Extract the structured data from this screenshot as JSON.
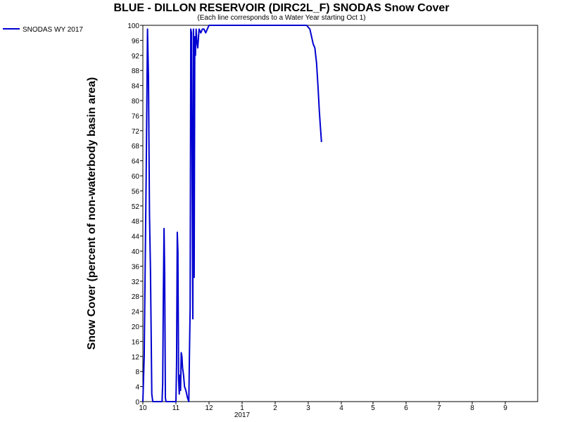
{
  "chart_data": {
    "type": "line",
    "title": "BLUE - DILLON RESERVOIR (DIRC2L_F) SNODAS Snow Cover",
    "subtitle": "(Each line corresponds to a Water Year starting Oct 1)",
    "ylabel": "Snow Cover (percent of non-waterbody basin area)",
    "xlabel": "",
    "ylim": [
      0,
      100
    ],
    "y_ticks": [
      "0",
      "4",
      "8",
      "12",
      "16",
      "20",
      "24",
      "28",
      "32",
      "36",
      "40",
      "44",
      "48",
      "52",
      "56",
      "60",
      "64",
      "68",
      "72",
      "76",
      "80",
      "84",
      "88",
      "92",
      "96",
      "100"
    ],
    "x_ticks": [
      {
        "label": "10",
        "month": 0
      },
      {
        "label": "11",
        "month": 1
      },
      {
        "label": "12",
        "month": 2
      },
      {
        "label": "1",
        "month": 3
      },
      {
        "label": "2",
        "month": 4
      },
      {
        "label": "3",
        "month": 5
      },
      {
        "label": "4",
        "month": 6
      },
      {
        "label": "5",
        "month": 7
      },
      {
        "label": "6",
        "month": 8
      },
      {
        "label": "7",
        "month": 9
      },
      {
        "label": "8",
        "month": 10
      },
      {
        "label": "9",
        "month": 11
      }
    ],
    "year_label": "2017",
    "xlim_months": [
      0,
      12
    ],
    "grid": false,
    "legend_position": "top-left",
    "series": [
      {
        "name": "SNODAS WY 2017",
        "color": "#0000d0",
        "points": [
          [
            0.0,
            0
          ],
          [
            0.04,
            12
          ],
          [
            0.1,
            60
          ],
          [
            0.14,
            99
          ],
          [
            0.17,
            86
          ],
          [
            0.2,
            50
          ],
          [
            0.23,
            35
          ],
          [
            0.25,
            18
          ],
          [
            0.27,
            2
          ],
          [
            0.3,
            0
          ],
          [
            0.58,
            0
          ],
          [
            0.6,
            5
          ],
          [
            0.62,
            28
          ],
          [
            0.64,
            46
          ],
          [
            0.66,
            34
          ],
          [
            0.68,
            1
          ],
          [
            0.7,
            0
          ],
          [
            1.0,
            0
          ],
          [
            1.02,
            10
          ],
          [
            1.04,
            45
          ],
          [
            1.06,
            40
          ],
          [
            1.08,
            6
          ],
          [
            1.1,
            2
          ],
          [
            1.12,
            7
          ],
          [
            1.14,
            3
          ],
          [
            1.16,
            13
          ],
          [
            1.18,
            12
          ],
          [
            1.2,
            9
          ],
          [
            1.23,
            7
          ],
          [
            1.26,
            4
          ],
          [
            1.3,
            3
          ],
          [
            1.35,
            1
          ],
          [
            1.39,
            0
          ],
          [
            1.41,
            14
          ],
          [
            1.43,
            25
          ],
          [
            1.45,
            99
          ],
          [
            1.47,
            98
          ],
          [
            1.49,
            60
          ],
          [
            1.51,
            22
          ],
          [
            1.53,
            99
          ],
          [
            1.55,
            33
          ],
          [
            1.57,
            97
          ],
          [
            1.59,
            92
          ],
          [
            1.61,
            99
          ],
          [
            1.63,
            96
          ],
          [
            1.66,
            94
          ],
          [
            1.7,
            99
          ],
          [
            1.75,
            98
          ],
          [
            1.8,
            99
          ],
          [
            1.85,
            99
          ],
          [
            1.9,
            98
          ],
          [
            1.95,
            99
          ],
          [
            2.0,
            100
          ],
          [
            2.3,
            100
          ],
          [
            3.0,
            100
          ],
          [
            4.0,
            100
          ],
          [
            4.95,
            100
          ],
          [
            5.05,
            99
          ],
          [
            5.15,
            95
          ],
          [
            5.2,
            94
          ],
          [
            5.25,
            90
          ],
          [
            5.3,
            83
          ],
          [
            5.33,
            78
          ],
          [
            5.36,
            74
          ],
          [
            5.4,
            69
          ]
        ]
      }
    ]
  }
}
